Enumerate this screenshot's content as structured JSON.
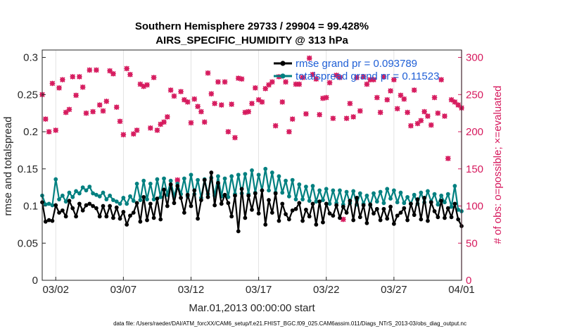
{
  "chart_data": {
    "type": "line",
    "title": "Southern Hemisphere 29733 / 29904 = 99.428%",
    "subtitle": "AIRS_SPECIFIC_HUMIDITY @ 313 hPa",
    "xlabel": "Mar.01,2013 00:00:00 start",
    "ylabel": "rmse and totalspread",
    "y2label": "# of obs: o=possible; ×=evaluated",
    "xlim": [
      0,
      124
    ],
    "ylim": [
      0,
      0.31
    ],
    "y2lim": [
      0,
      310
    ],
    "x_ticks": [
      {
        "t": 4,
        "label": "03/02"
      },
      {
        "t": 24,
        "label": "03/07"
      },
      {
        "t": 44,
        "label": "03/12"
      },
      {
        "t": 64,
        "label": "03/17"
      },
      {
        "t": 84,
        "label": "03/22"
      },
      {
        "t": 104,
        "label": "03/27"
      },
      {
        "t": 124,
        "label": "04/01"
      }
    ],
    "y_ticks": [
      "0",
      "0.05",
      "0.1",
      "0.15",
      "0.2",
      "0.25",
      "0.3"
    ],
    "y2_ticks": [
      "0",
      "50",
      "100",
      "150",
      "200",
      "250",
      "300"
    ],
    "legend": {
      "rmse": "rmse grand pr = 0.093789",
      "spread": "totalspread grand pr = 0.11523"
    },
    "series": [
      {
        "name": "rmse",
        "color": "#000000",
        "values": [
          0.105,
          0.079,
          0.081,
          0.08,
          0.101,
          0.091,
          0.094,
          0.086,
          0.107,
          0.097,
          0.086,
          0.103,
          0.094,
          0.101,
          0.103,
          0.1,
          0.097,
          0.086,
          0.1,
          0.086,
          0.1,
          0.084,
          0.098,
          0.083,
          0.092,
          0.075,
          0.087,
          0.091,
          0.104,
          0.079,
          0.112,
          0.081,
          0.103,
          0.084,
          0.11,
          0.082,
          0.122,
          0.1,
          0.129,
          0.104,
          0.127,
          0.111,
          0.091,
          0.115,
          0.1,
          0.121,
          0.083,
          0.108,
          0.135,
          0.112,
          0.145,
          0.101,
          0.131,
          0.103,
          0.115,
          0.104,
          0.086,
          0.114,
          0.066,
          0.123,
          0.084,
          0.114,
          0.095,
          0.117,
          0.09,
          0.121,
          0.075,
          0.108,
          0.091,
          0.117,
          0.08,
          0.103,
          0.089,
          0.082,
          0.094,
          0.096,
          0.104,
          0.08,
          0.095,
          0.086,
          0.103,
          0.075,
          0.106,
          0.078,
          0.103,
          0.09,
          0.087,
          0.101,
          0.084,
          0.099,
          0.091,
          0.107,
          0.081,
          0.111,
          0.085,
          0.101,
          0.077,
          0.102,
          0.09,
          0.096,
          0.081,
          0.096,
          0.083,
          0.099,
          0.076,
          0.087,
          0.091,
          0.097,
          0.081,
          0.103,
          0.088,
          0.109,
          0.082,
          0.111,
          0.08,
          0.105,
          0.093,
          0.085,
          0.107,
          0.084,
          0.097,
          0.085,
          0.103,
          0.082,
          0.073
        ]
      },
      {
        "name": "totalspread",
        "color": "#008080",
        "values": [
          0.114,
          0.102,
          0.103,
          0.101,
          0.136,
          0.109,
          0.114,
          0.106,
          0.118,
          0.112,
          0.12,
          0.117,
          0.125,
          0.121,
          0.126,
          0.117,
          0.115,
          0.113,
          0.118,
          0.109,
          0.114,
          0.108,
          0.106,
          0.103,
          0.111,
          0.103,
          0.113,
          0.107,
          0.13,
          0.108,
          0.134,
          0.109,
          0.13,
          0.109,
          0.136,
          0.112,
          0.137,
          0.115,
          0.134,
          0.113,
          0.13,
          0.116,
          0.137,
          0.113,
          0.142,
          0.116,
          0.135,
          0.111,
          0.136,
          0.116,
          0.138,
          0.114,
          0.14,
          0.113,
          0.137,
          0.112,
          0.14,
          0.116,
          0.142,
          0.117,
          0.143,
          0.116,
          0.148,
          0.118,
          0.142,
          0.121,
          0.15,
          0.121,
          0.145,
          0.118,
          0.14,
          0.118,
          0.134,
          0.113,
          0.135,
          0.109,
          0.129,
          0.109,
          0.126,
          0.107,
          0.127,
          0.106,
          0.121,
          0.108,
          0.123,
          0.103,
          0.121,
          0.104,
          0.121,
          0.102,
          0.119,
          0.104,
          0.12,
          0.102,
          0.117,
          0.103,
          0.114,
          0.101,
          0.117,
          0.106,
          0.119,
          0.104,
          0.123,
          0.11,
          0.121,
          0.105,
          0.118,
          0.104,
          0.112,
          0.103,
          0.115,
          0.103,
          0.118,
          0.105,
          0.12,
          0.106,
          0.116,
          0.102,
          0.114,
          0.105,
          0.116,
          0.099,
          0.127,
          0.095,
          0.093
        ]
      }
    ],
    "obs_possible": [
      250,
      217,
      200,
      265,
      202,
      259,
      270,
      226,
      230,
      274,
      249,
      274,
      260,
      225,
      283,
      227,
      283,
      236,
      228,
      241,
      282,
      278,
      233,
      214,
      196,
      285,
      277,
      197,
      202,
      264,
      261,
      263,
      205,
      273,
      202,
      210,
      213,
      220,
      256,
      248,
      135,
      254,
      243,
      240,
      212,
      244,
      234,
      227,
      213,
      279,
      251,
      238,
      267,
      236,
      267,
      200,
      237,
      192,
      272,
      271,
      226,
      227,
      238,
      259,
      243,
      240,
      258,
      263,
      267,
      208,
      274,
      240,
      267,
      200,
      217,
      264,
      264,
      273,
      224,
      299,
      277,
      271,
      223,
      245,
      246,
      266,
      218,
      276,
      273,
      82,
      218,
      238,
      220,
      273,
      228,
      274,
      264,
      270,
      270,
      246,
      226,
      274,
      243,
      255,
      270,
      231,
      249,
      244,
      226,
      208,
      256,
      211,
      215,
      227,
      221,
      209,
      246,
      225,
      270,
      221,
      164,
      243,
      240,
      236,
      232
    ]
  },
  "footer": "data file: /Users/raeder/DAI/ATM_forcXX/CAM6_setup/f.e21.FHIST_BGC.f09_025.CAM6assim.011/Diags_NTrS_2013-03/obs_diag_output.nc"
}
